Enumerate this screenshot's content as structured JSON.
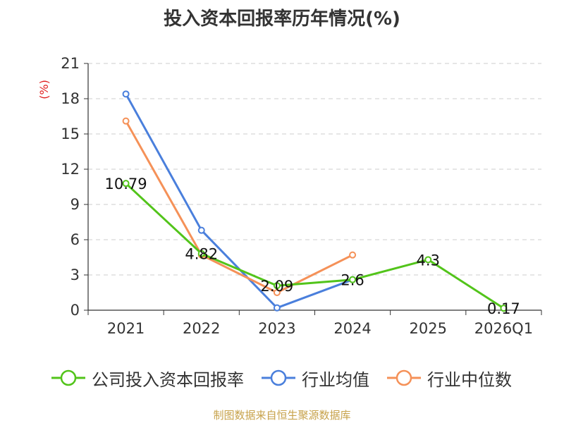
{
  "chart_data": {
    "type": "line",
    "title": "投入资本回报率历年情况(%)",
    "ylabel": "(%)",
    "xlabel": "",
    "categories": [
      "2021",
      "2022",
      "2023",
      "2024",
      "2025",
      "2026Q1"
    ],
    "ylim": [
      0,
      21
    ],
    "yticks": [
      0,
      3,
      6,
      9,
      12,
      15,
      18,
      21
    ],
    "grid": true,
    "legend_position": "bottom",
    "series": [
      {
        "name": "公司投入资本回报率",
        "color": "#52c41a",
        "values": [
          10.79,
          4.82,
          2.09,
          2.6,
          4.3,
          0.17
        ],
        "labels": [
          "10.79",
          "4.82",
          "2.09",
          "2.6",
          "4.3",
          "0.17"
        ]
      },
      {
        "name": "行业均值",
        "color": "#4a7fdc",
        "values": [
          18.4,
          6.8,
          0.2,
          2.6,
          null,
          null
        ]
      },
      {
        "name": "行业中位数",
        "color": "#f59158",
        "values": [
          16.1,
          4.7,
          1.5,
          4.7,
          null,
          null
        ]
      }
    ]
  },
  "footer": {
    "source": "制图数据来自恒生聚源数据库"
  }
}
